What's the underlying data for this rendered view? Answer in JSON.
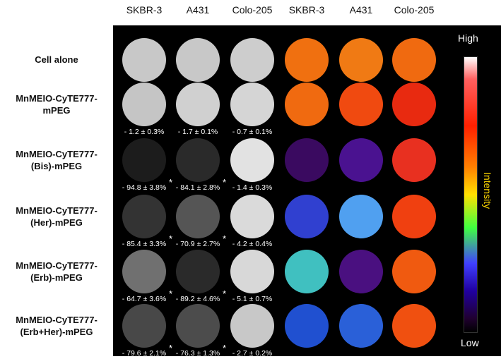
{
  "column_headers": [
    "SKBR-3",
    "A431",
    "Colo-205",
    "SKBR-3",
    "A431",
    "Colo-205"
  ],
  "rows": [
    {
      "label": "Cell alone",
      "values": [
        "",
        "",
        ""
      ],
      "stars": [
        false,
        false,
        false
      ],
      "gray": [
        "#c8c8c8",
        "#c8c8c8",
        "#cdcdcd"
      ],
      "color": [
        "#f07010",
        "#f07a14",
        "#f06a10"
      ]
    },
    {
      "label": "MnMEIO-CyTE777-mPEG",
      "values": [
        "- 1.2 ± 0.3%",
        "- 1.7 ± 0.1%",
        "- 0.7 ± 0.1%"
      ],
      "stars": [
        false,
        false,
        false
      ],
      "gray": [
        "#c5c5c5",
        "#d0d0d0",
        "#d5d5d5"
      ],
      "color": [
        "#f06a10",
        "#f04a10",
        "#e82a10"
      ]
    },
    {
      "label": "MnMEIO-CyTE777-(Bis)-mPEG",
      "values": [
        "- 94.8 ± 3.8%",
        "- 84.1 ± 2.8%",
        "- 1.4 ± 0.3%"
      ],
      "stars": [
        true,
        true,
        false
      ],
      "gray": [
        "#1c1c1c",
        "#2a2a2a",
        "#e2e2e2"
      ],
      "color": [
        "#3a0a60",
        "#4a1290",
        "#e83020"
      ]
    },
    {
      "label": "MnMEIO-CyTE777-(Her)-mPEG",
      "values": [
        "- 85.4 ± 3.3%",
        "- 70.9 ± 2.7%",
        "- 4.2 ± 0.4%"
      ],
      "stars": [
        true,
        true,
        false
      ],
      "gray": [
        "#333333",
        "#555555",
        "#dadada"
      ],
      "color": [
        "#3040d0",
        "#50a0f0",
        "#f04010"
      ]
    },
    {
      "label": "MnMEIO-CyTE777-(Erb)-mPEG",
      "values": [
        "- 64.7 ± 3.6%",
        "- 89.2 ± 4.6%",
        "- 5.1 ± 0.7%"
      ],
      "stars": [
        true,
        true,
        false
      ],
      "gray": [
        "#707070",
        "#2a2a2a",
        "#d8d8d8"
      ],
      "color": [
        "#40c0c0",
        "#4a1080",
        "#f05a10"
      ]
    },
    {
      "label": "MnMEIO-CyTE777-(Erb+Her)-mPEG",
      "values": [
        "- 79.6 ± 2.1%",
        "- 76.3 ± 1.3%",
        "- 2.7 ± 0.2%"
      ],
      "stars": [
        true,
        true,
        false
      ],
      "gray": [
        "#484848",
        "#4c4c4c",
        "#c8c8c8"
      ],
      "color": [
        "#2050d0",
        "#2a60d8",
        "#f05010"
      ]
    }
  ],
  "star_symbol": "*",
  "colorbar": {
    "high": "High",
    "low": "Low",
    "title": "Intensity"
  }
}
